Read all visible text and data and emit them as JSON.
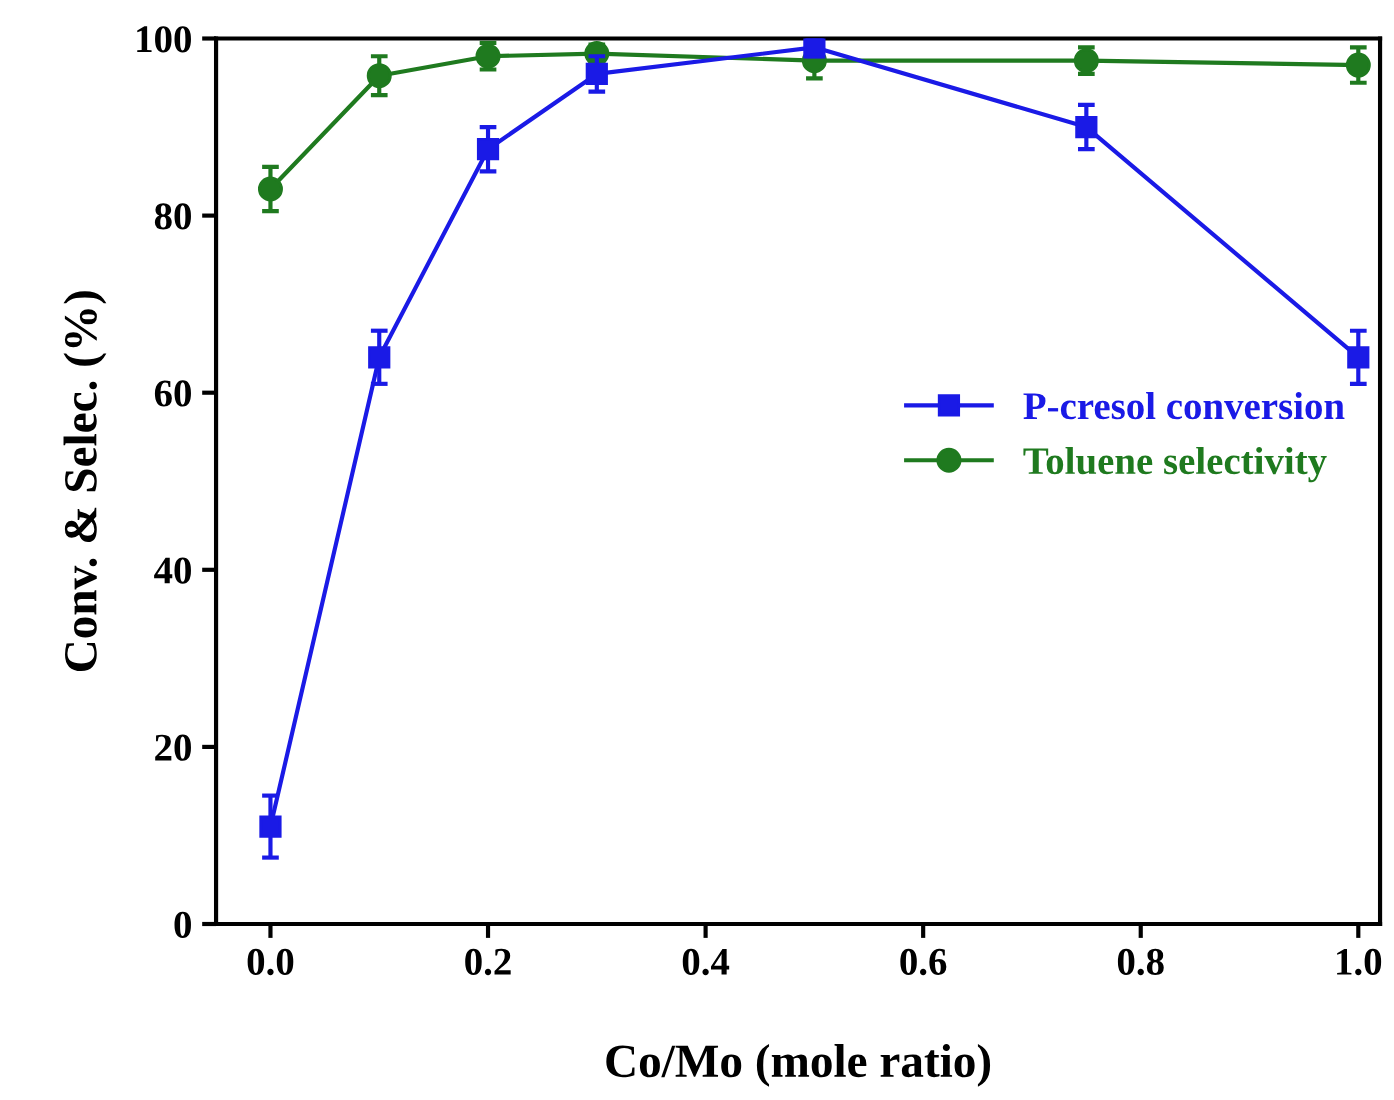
{
  "chart_data": {
    "type": "line",
    "xlabel": "Co/Mo (mole ratio)",
    "ylabel": "Conv. & Selec. (%)",
    "x": [
      0.0,
      0.1,
      0.2,
      0.3,
      0.5,
      0.75,
      1.0
    ],
    "xlim": [
      -0.05,
      1.02
    ],
    "xticks": [
      {
        "value": 0,
        "label": "0.0"
      },
      0.2,
      0.4,
      0.6,
      0.8,
      {
        "value": 1,
        "label": "1.0"
      }
    ],
    "ylim": [
      0,
      100
    ],
    "yticks": [
      0,
      20,
      40,
      60,
      80,
      100
    ],
    "series": [
      {
        "name": "P-cresol conversion",
        "color": "#1a1ae6",
        "marker": "square",
        "values": [
          11,
          64,
          87.5,
          96,
          99,
          90,
          64
        ],
        "errors": [
          3.5,
          3,
          2.5,
          2,
          1,
          2.5,
          3
        ]
      },
      {
        "name": "Toluene selectivity",
        "color": "#1f7a1f",
        "marker": "circle",
        "values": [
          83,
          95.8,
          98,
          98.3,
          97.5,
          97.5,
          97
        ],
        "errors": [
          2.5,
          2.2,
          1.5,
          1,
          2,
          1.5,
          2
        ]
      }
    ],
    "legend": "right",
    "grid": false,
    "line_style": "solid"
  }
}
